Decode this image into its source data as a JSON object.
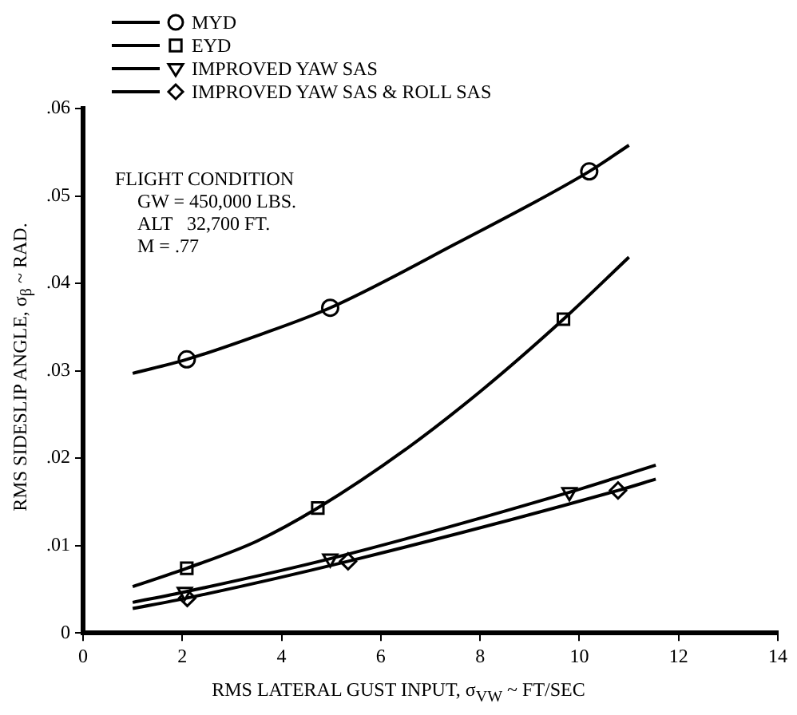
{
  "chart_data": {
    "type": "line",
    "xlabel": "RMS LATERAL GUST INPUT, σ$_{VW}$ ~ FT/SEC",
    "ylabel": "RMS SIDESLIP ANGLE, σ$_{β}$ ~ RAD.",
    "xlim": [
      0,
      14
    ],
    "xticks": [
      0,
      2,
      4,
      6,
      8,
      10,
      12,
      14
    ],
    "ylim": [
      0,
      0.06
    ],
    "yticks": [
      0,
      {
        "value": 0.01,
        "label": ".01"
      },
      {
        "value": 0.02,
        "label": ".02"
      },
      {
        "value": 0.03,
        "label": ".03"
      },
      {
        "value": 0.04,
        "label": ".04"
      },
      {
        "value": 0.05,
        "label": ".05"
      },
      {
        "value": 0.06,
        "label": ".06"
      }
    ],
    "grid": false,
    "legend": "top left",
    "annotations": [
      "FLIGHT CONDITION",
      "GW = 450,000 LBS.",
      "ALT   32,700 FT.",
      "M = .77"
    ],
    "series": [
      {
        "type": "line",
        "marker": "none",
        "color": "#000000",
        "x": [
          1,
          2.09,
          3.5,
          4.98,
          7.5,
          10.2,
          11
        ],
        "values": [
          0.0297,
          0.0313,
          0.034,
          0.0372,
          0.0445,
          0.0528,
          0.0558
        ]
      },
      {
        "type": "scatter",
        "name": "MYD",
        "marker": "circle",
        "color": "#000000",
        "x": [
          2.09,
          4.98,
          10.2
        ],
        "values": [
          0.0313,
          0.0372,
          0.0528
        ]
      },
      {
        "type": "line",
        "marker": "none",
        "color": "#000000",
        "x": [
          1,
          2.09,
          3.5,
          4.73,
          6.5,
          8.04,
          9.68,
          11
        ],
        "values": [
          0.0053,
          0.0074,
          0.0105,
          0.0143,
          0.021,
          0.0278,
          0.0359,
          0.043
        ]
      },
      {
        "type": "scatter",
        "name": "EYD",
        "marker": "square",
        "color": "#000000",
        "x": [
          2.09,
          4.73,
          9.68
        ],
        "values": [
          0.0074,
          0.0143,
          0.0359
        ]
      },
      {
        "type": "line",
        "marker": "none",
        "color": "#000000",
        "x": [
          1,
          2.05,
          4.98,
          9.8,
          11.54
        ],
        "values": [
          0.0035,
          0.0047,
          0.0085,
          0.0161,
          0.0192
        ]
      },
      {
        "type": "scatter",
        "name": "IMPROVED YAW SAS",
        "marker": "triangle",
        "color": "#000000",
        "x": [
          2.05,
          4.98,
          9.8
        ],
        "values": [
          0.0047,
          0.0085,
          0.0161
        ]
      },
      {
        "type": "line",
        "marker": "none",
        "color": "#000000",
        "x": [
          1,
          2.1,
          5.34,
          10.78,
          11.54
        ],
        "values": [
          0.0028,
          0.004,
          0.0082,
          0.0163,
          0.0176
        ]
      },
      {
        "type": "scatter",
        "name": "IMPROVED YAW SAS & ROLL SAS",
        "marker": "diamond",
        "color": "#000000",
        "x": [
          2.1,
          5.34,
          10.78
        ],
        "values": [
          0.004,
          0.0082,
          0.0163
        ]
      }
    ]
  }
}
